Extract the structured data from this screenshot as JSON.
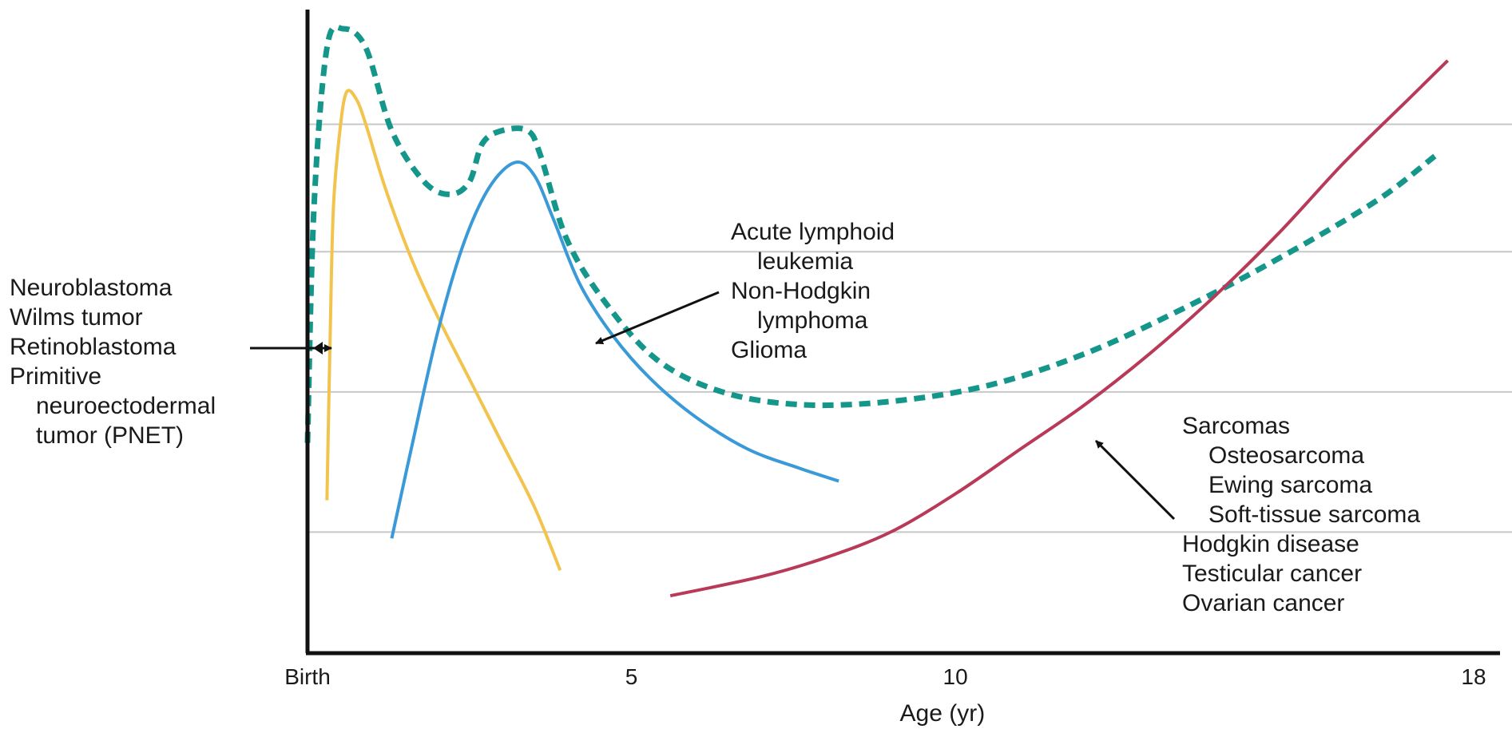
{
  "chart_data": {
    "type": "line",
    "xlabel": "Age (yr)",
    "ylabel": "",
    "title": "",
    "xlim": [
      0,
      18
    ],
    "ylim": [
      0,
      100
    ],
    "x_ticks": [
      {
        "value": 0,
        "label": "Birth"
      },
      {
        "value": 5,
        "label": "5"
      },
      {
        "value": 10,
        "label": "10"
      },
      {
        "value": 18,
        "label": "18"
      }
    ],
    "gridlines_y": [
      19,
      41,
      63,
      83
    ],
    "grid": "horizontal",
    "series": [
      {
        "key": "total",
        "style": "dashed",
        "color": "#14968a",
        "points": [
          [
            0,
            33
          ],
          [
            0.1,
            70
          ],
          [
            0.3,
            95
          ],
          [
            0.55,
            98
          ],
          [
            0.9,
            95
          ],
          [
            1.3,
            82
          ],
          [
            1.8,
            74
          ],
          [
            2.2,
            72
          ],
          [
            2.5,
            74
          ],
          [
            2.7,
            80
          ],
          [
            3.0,
            82
          ],
          [
            3.4,
            82
          ],
          [
            3.6,
            78
          ],
          [
            4.0,
            65
          ],
          [
            4.6,
            55
          ],
          [
            5.4,
            46
          ],
          [
            6.4,
            41
          ],
          [
            7.6,
            39
          ],
          [
            9,
            39.5
          ],
          [
            10.5,
            42
          ],
          [
            12,
            47
          ],
          [
            13.5,
            54
          ],
          [
            15,
            62
          ],
          [
            16.5,
            71
          ],
          [
            17.4,
            78
          ]
        ]
      },
      {
        "key": "embryonal",
        "style": "solid",
        "color": "#f2c44e",
        "points": [
          [
            0.3,
            24
          ],
          [
            0.35,
            50
          ],
          [
            0.4,
            70
          ],
          [
            0.5,
            82
          ],
          [
            0.6,
            88
          ],
          [
            0.75,
            87
          ],
          [
            0.9,
            83
          ],
          [
            1.2,
            73
          ],
          [
            1.6,
            62
          ],
          [
            2.0,
            53
          ],
          [
            2.5,
            43
          ],
          [
            3.0,
            33
          ],
          [
            3.5,
            23
          ],
          [
            3.9,
            13
          ]
        ]
      },
      {
        "key": "leukemia",
        "style": "solid",
        "color": "#3a9ad8",
        "points": [
          [
            1.3,
            18
          ],
          [
            1.6,
            32
          ],
          [
            2.0,
            50
          ],
          [
            2.4,
            64
          ],
          [
            2.8,
            73
          ],
          [
            3.2,
            77
          ],
          [
            3.5,
            75
          ],
          [
            3.8,
            68
          ],
          [
            4.2,
            58
          ],
          [
            4.7,
            50
          ],
          [
            5.3,
            43
          ],
          [
            6.0,
            37
          ],
          [
            6.8,
            32
          ],
          [
            7.6,
            29
          ],
          [
            8.2,
            27
          ]
        ]
      },
      {
        "key": "adolescent",
        "style": "solid",
        "color": "#b83a58",
        "points": [
          [
            5.6,
            9
          ],
          [
            7,
            12
          ],
          [
            8,
            15
          ],
          [
            9,
            19
          ],
          [
            10,
            25
          ],
          [
            11,
            32
          ],
          [
            12,
            39
          ],
          [
            13,
            47
          ],
          [
            14,
            56
          ],
          [
            15,
            66
          ],
          [
            16,
            77
          ],
          [
            17,
            87
          ],
          [
            17.6,
            93
          ]
        ]
      }
    ],
    "annotations": [
      {
        "lines": [
          "Neuroblastoma",
          "Wilms tumor",
          "Retinoblastoma",
          "Primitive",
          "neuroectodermal",
          "tumor (PNET)"
        ],
        "indent": [
          0,
          0,
          0,
          0,
          1,
          1
        ],
        "points_to": "embryonal"
      },
      {
        "lines": [
          "Acute lymphoid",
          "leukemia",
          "Non-Hodgkin",
          "lymphoma",
          "Glioma"
        ],
        "indent": [
          0,
          1,
          0,
          1,
          0
        ],
        "points_to": "leukemia"
      },
      {
        "lines": [
          "Sarcomas",
          "Osteosarcoma",
          "Ewing sarcoma",
          "Soft-tissue sarcoma",
          "Hodgkin disease",
          "Testicular cancer",
          "Ovarian cancer"
        ],
        "indent": [
          0,
          1,
          1,
          1,
          0,
          0,
          0
        ],
        "points_to": "adolescent"
      }
    ]
  }
}
